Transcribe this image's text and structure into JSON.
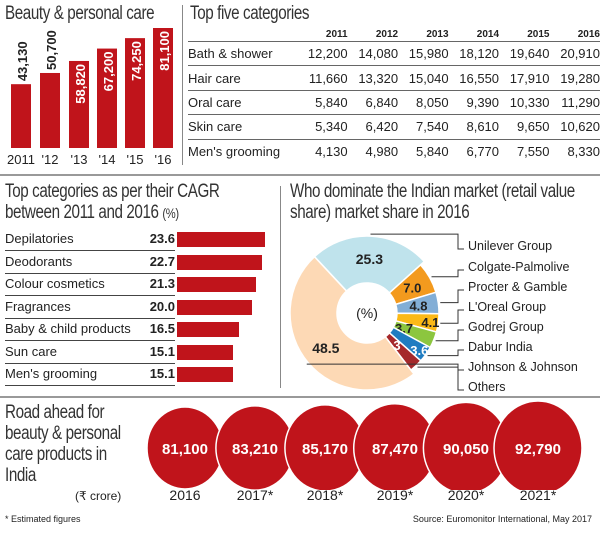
{
  "chart_data": [
    {
      "type": "bar",
      "title": "Beauty & personal care",
      "categories": [
        "2011",
        "'12",
        "'13",
        "'14",
        "'15",
        "'16"
      ],
      "values": [
        43130,
        50700,
        58820,
        67200,
        74250,
        81100
      ],
      "labels": [
        "43,130",
        "50,700",
        "58,820",
        "67,200",
        "74,250",
        "81,100"
      ],
      "color": "#c0141b"
    },
    {
      "type": "table",
      "title": "Top five categories",
      "columns": [
        "2011",
        "2012",
        "2013",
        "2014",
        "2015",
        "2016"
      ],
      "rows": [
        {
          "label": "Bath & shower",
          "values": [
            "12,200",
            "14,080",
            "15,980",
            "18,120",
            "19,640",
            "20,910"
          ]
        },
        {
          "label": "Hair care",
          "values": [
            "11,660",
            "13,320",
            "15,040",
            "16,550",
            "17,910",
            "19,280"
          ]
        },
        {
          "label": "Oral care",
          "values": [
            "5,840",
            "6,840",
            "8,050",
            "9,390",
            "10,330",
            "11,290"
          ]
        },
        {
          "label": "Skin care",
          "values": [
            "5,340",
            "6,420",
            "7,540",
            "8,610",
            "9,650",
            "10,620"
          ]
        },
        {
          "label": "Men's grooming",
          "values": [
            "4,130",
            "4,980",
            "5,840",
            "6,770",
            "7,550",
            "8,330"
          ]
        }
      ]
    },
    {
      "type": "bar",
      "orientation": "horizontal",
      "title": "Top categories as per their CAGR between 2011 and 2016",
      "unit": "(%)",
      "categories": [
        "Depilatories",
        "Deodorants",
        "Colour cosmetics",
        "Fragrances",
        "Baby & child products",
        "Sun care",
        "Men's grooming"
      ],
      "values": [
        23.6,
        22.7,
        21.3,
        20.0,
        16.5,
        15.1,
        15.1
      ],
      "labels": [
        "23.6",
        "22.7",
        "21.3",
        "20.0",
        "16.5",
        "15.1",
        "15.1"
      ]
    },
    {
      "type": "pie",
      "title": "Who dominate the Indian market (retail value share) market share in 2016",
      "center_label": "(%)",
      "slices": [
        {
          "name": "Unilever Group",
          "value": 25.3,
          "label": "25.3",
          "color": "#bfe3ec"
        },
        {
          "name": "Colgate-Palmolive",
          "value": 7.0,
          "label": "7.0",
          "color": "#f39a1e"
        },
        {
          "name": "Procter & Gamble",
          "value": 4.8,
          "label": "4.8",
          "color": "#82aed6"
        },
        {
          "name": "L'Oreal Group",
          "value": 4.1,
          "label": "4.1",
          "color": "#fbb917"
        },
        {
          "name": "Godrej Group",
          "value": 3.7,
          "label": "3.7",
          "color": "#8cc63f"
        },
        {
          "name": "Dabur India",
          "value": 3.6,
          "label": "3.6",
          "color": "#1f7cc1"
        },
        {
          "name": "Johnson & Johnson",
          "value": 3.0,
          "label": "3",
          "color": "#a5282b"
        },
        {
          "name": "Others",
          "value": 48.5,
          "label": "48.5",
          "color": "#fdd9b5"
        }
      ]
    },
    {
      "type": "bubble",
      "title": "Road ahead for beauty & personal care products in India",
      "unit": "(₹ crore)",
      "categories": [
        "2016",
        "2017*",
        "2018*",
        "2019*",
        "2020*",
        "2021*"
      ],
      "values": [
        81100,
        83210,
        85170,
        87470,
        90050,
        92790
      ],
      "labels": [
        "81,100",
        "83,210",
        "85,170",
        "87,470",
        "90,050",
        "92,790"
      ]
    }
  ],
  "footer": {
    "note": "* Estimated figures",
    "source": "Source: Euromonitor International, May 2017"
  }
}
